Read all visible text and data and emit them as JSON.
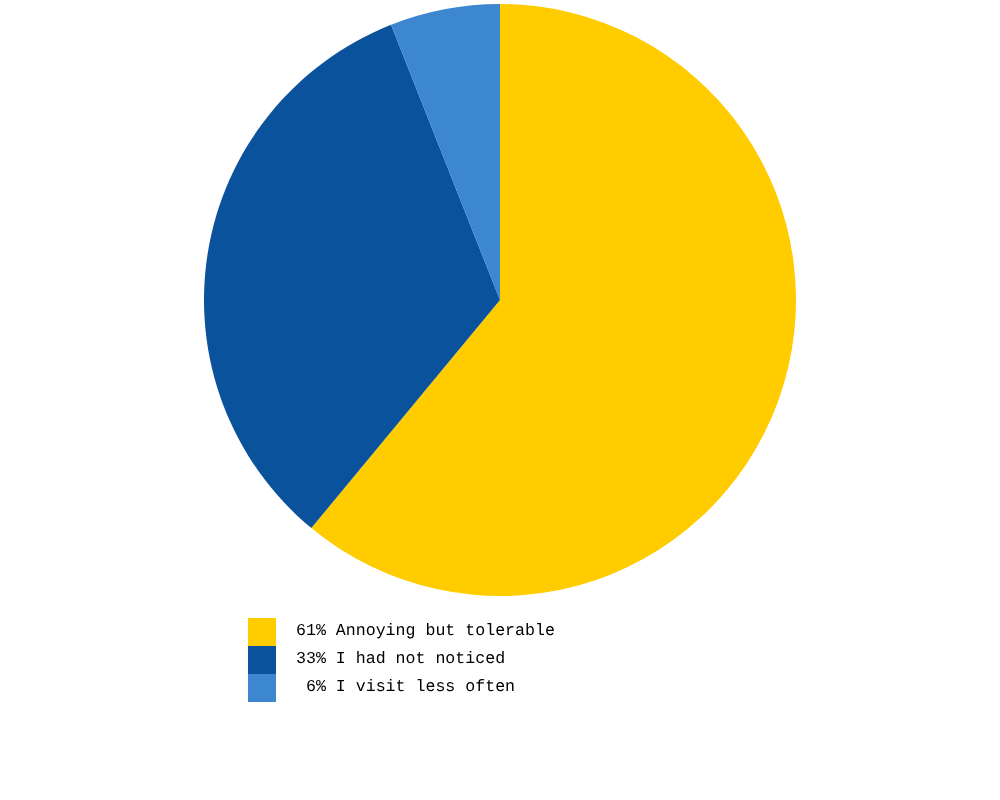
{
  "chart_data": {
    "type": "pie",
    "categories": [
      "Annoying but tolerable",
      "I had not noticed",
      "I visit less often"
    ],
    "values": [
      61,
      33,
      6
    ],
    "colors": [
      "#ffcc00",
      "#0b529c",
      "#3d86d0"
    ],
    "value_labels": [
      "61%",
      "33%",
      "6%"
    ],
    "legend": "bottom"
  }
}
